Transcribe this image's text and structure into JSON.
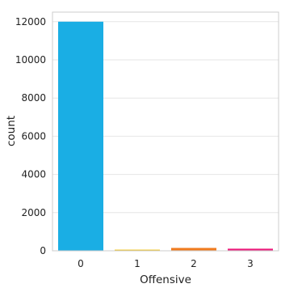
{
  "chart_data": {
    "type": "bar",
    "xlabel": "Offensive",
    "ylabel": "count",
    "categories": [
      "0",
      "1",
      "2",
      "3"
    ],
    "values": [
      12000,
      60,
      150,
      110
    ],
    "colors": [
      "#1aaee4",
      "#f2c21a",
      "#f07b1f",
      "#ec1a7b"
    ],
    "ylim": [
      0,
      12500
    ],
    "yticks": [
      0,
      2000,
      4000,
      6000,
      8000,
      10000,
      12000
    ],
    "ytick_labels": [
      "0",
      "2000",
      "4000",
      "6000",
      "8000",
      "10000",
      "12000"
    ],
    "grid": true,
    "background": "#ffffff",
    "grid_color": "#e6e6e6",
    "spine_color": "#cccccc"
  }
}
